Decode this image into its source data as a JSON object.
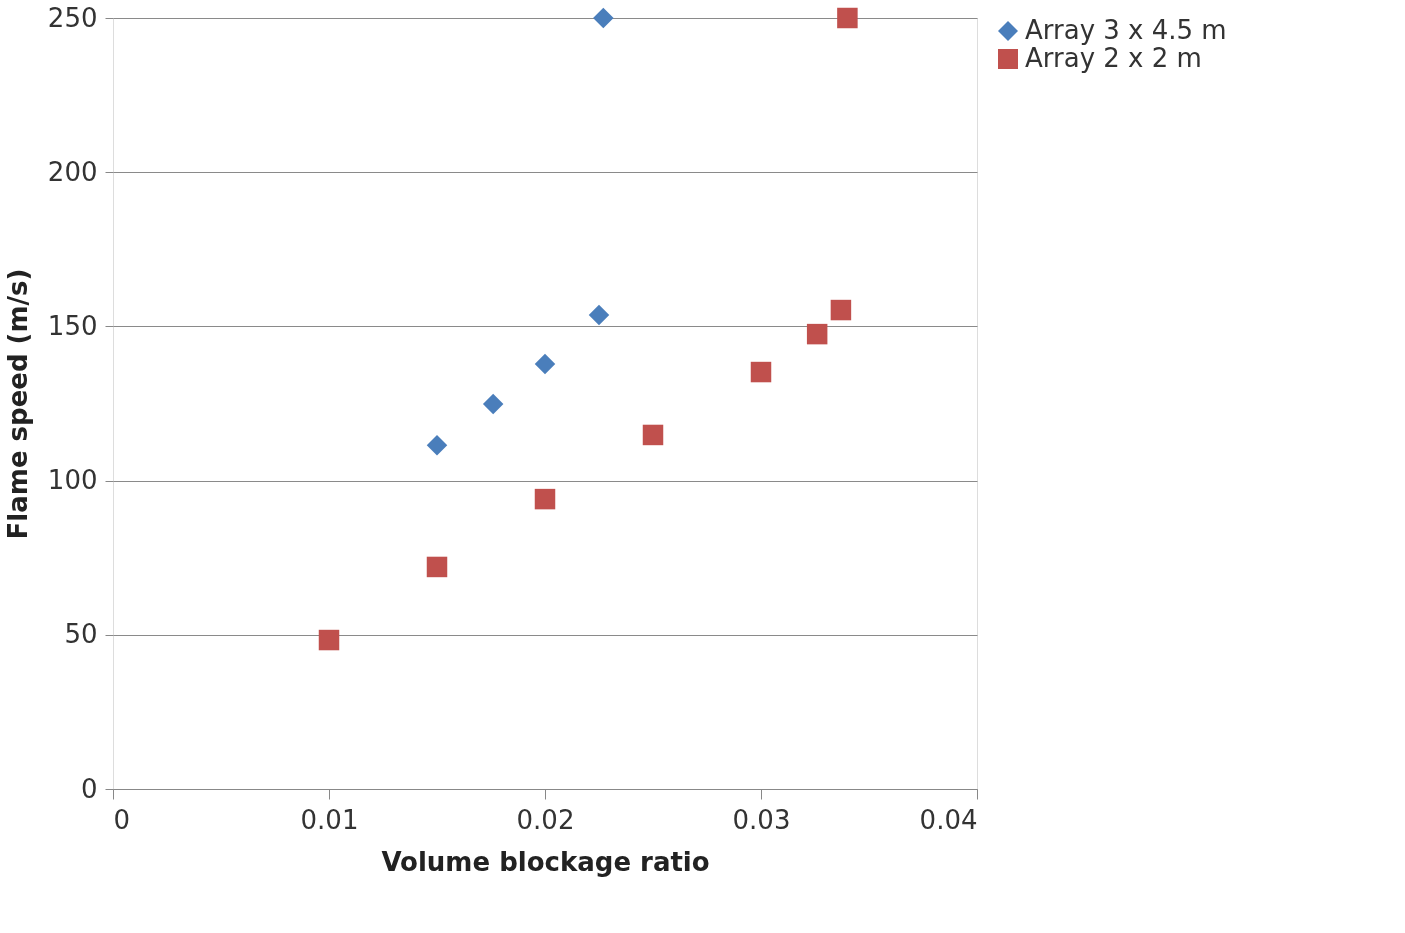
{
  "chart_data": {
    "type": "scatter",
    "xlabel": "Volume blockage ratio",
    "ylabel": "Flame speed (m/s)",
    "xlim": [
      0,
      0.04
    ],
    "xticks": [
      0,
      0.01,
      0.02,
      0.03,
      0.04
    ],
    "ylim": [
      0,
      250
    ],
    "yticks": [
      0,
      50,
      100,
      150,
      200,
      250
    ],
    "grid": "y",
    "legend": "right",
    "series": [
      {
        "name": "Array 3 x 4.5 m",
        "color": "#4a7ebb",
        "marker": "diamond",
        "x": [
          0.015,
          0.0176,
          0.02,
          0.0225,
          0.0227
        ],
        "values": [
          111.5,
          124.8,
          137.8,
          153.7,
          250
        ]
      },
      {
        "name": "Array 2 x 2 m",
        "color": "#c0504d",
        "marker": "square",
        "x": [
          0.01,
          0.015,
          0.02,
          0.025,
          0.03,
          0.0326,
          0.0337,
          0.034
        ],
        "values": [
          48.3,
          72,
          94,
          114.8,
          135.2,
          147.5,
          155.3,
          250
        ]
      }
    ]
  }
}
